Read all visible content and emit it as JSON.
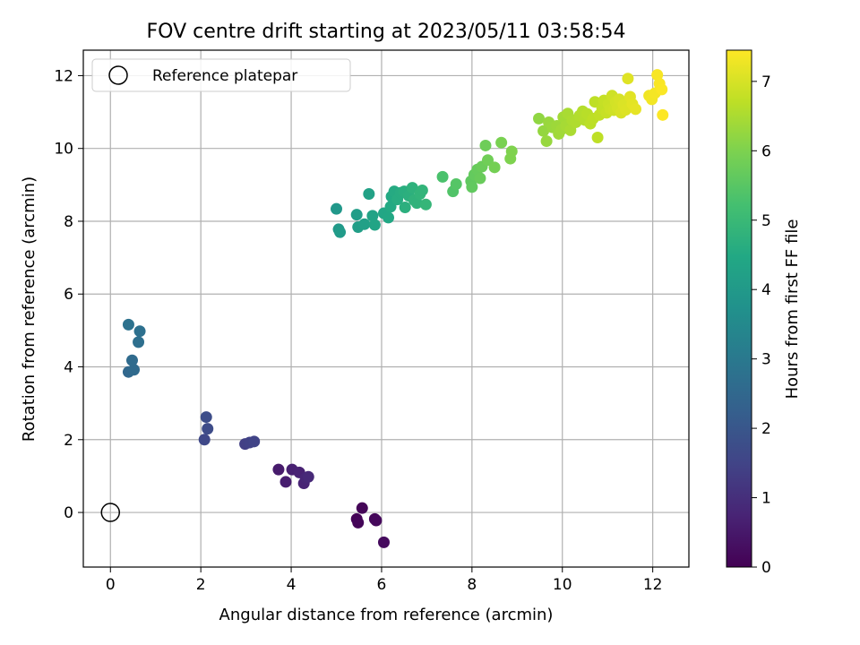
{
  "chart_data": {
    "type": "scatter",
    "title": "FOV centre drift starting at 2023/05/11 03:58:54",
    "xlabel": "Angular distance from reference (arcmin)",
    "ylabel": "Rotation from reference (arcmin)",
    "xlim": [
      -0.6,
      12.8
    ],
    "ylim": [
      -1.5,
      12.7
    ],
    "xticks": [
      0,
      2,
      4,
      6,
      8,
      10,
      12
    ],
    "yticks": [
      0,
      2,
      4,
      6,
      8,
      10,
      12
    ],
    "grid": true,
    "legend": {
      "position": "top-left",
      "entries": [
        "Reference platepar"
      ]
    },
    "reference_point": {
      "x": 0,
      "y": 0
    },
    "colorbar": {
      "label": "Hours from first FF file",
      "min": 0,
      "max": 7.45,
      "ticks": [
        0,
        1,
        2,
        3,
        4,
        5,
        6,
        7
      ],
      "colormap": "viridis"
    },
    "points": [
      {
        "x": 5.45,
        "y": -0.18,
        "c": 0.05
      },
      {
        "x": 5.48,
        "y": -0.28,
        "c": 0.08
      },
      {
        "x": 5.57,
        "y": 0.12,
        "c": 0.1
      },
      {
        "x": 5.85,
        "y": -0.18,
        "c": 0.12
      },
      {
        "x": 5.88,
        "y": -0.22,
        "c": 0.15
      },
      {
        "x": 6.05,
        "y": -0.82,
        "c": 0.2
      },
      {
        "x": 3.72,
        "y": 1.18,
        "c": 0.55
      },
      {
        "x": 3.88,
        "y": 0.84,
        "c": 0.6
      },
      {
        "x": 4.02,
        "y": 1.18,
        "c": 0.65
      },
      {
        "x": 4.18,
        "y": 1.1,
        "c": 0.7
      },
      {
        "x": 4.28,
        "y": 0.8,
        "c": 0.75
      },
      {
        "x": 4.32,
        "y": 0.95,
        "c": 0.8
      },
      {
        "x": 4.38,
        "y": 0.98,
        "c": 0.85
      },
      {
        "x": 2.98,
        "y": 1.88,
        "c": 1.4
      },
      {
        "x": 3.08,
        "y": 1.92,
        "c": 1.45
      },
      {
        "x": 3.18,
        "y": 1.95,
        "c": 1.5
      },
      {
        "x": 2.08,
        "y": 2.0,
        "c": 1.6
      },
      {
        "x": 2.15,
        "y": 2.3,
        "c": 1.7
      },
      {
        "x": 2.12,
        "y": 2.62,
        "c": 1.75
      },
      {
        "x": 0.4,
        "y": 3.86,
        "c": 2.5
      },
      {
        "x": 0.52,
        "y": 3.92,
        "c": 2.55
      },
      {
        "x": 0.48,
        "y": 4.18,
        "c": 2.6
      },
      {
        "x": 0.62,
        "y": 4.68,
        "c": 2.7
      },
      {
        "x": 0.65,
        "y": 4.98,
        "c": 2.75
      },
      {
        "x": 0.4,
        "y": 5.16,
        "c": 2.8
      },
      {
        "x": 5.0,
        "y": 8.34,
        "c": 3.95
      },
      {
        "x": 5.05,
        "y": 7.78,
        "c": 4.0
      },
      {
        "x": 5.08,
        "y": 7.7,
        "c": 4.05
      },
      {
        "x": 5.45,
        "y": 8.18,
        "c": 4.1
      },
      {
        "x": 5.48,
        "y": 7.84,
        "c": 4.15
      },
      {
        "x": 5.62,
        "y": 7.92,
        "c": 4.2
      },
      {
        "x": 5.72,
        "y": 8.75,
        "c": 4.25
      },
      {
        "x": 5.8,
        "y": 8.15,
        "c": 4.3
      },
      {
        "x": 5.85,
        "y": 7.9,
        "c": 4.35
      },
      {
        "x": 6.05,
        "y": 8.22,
        "c": 4.4
      },
      {
        "x": 6.15,
        "y": 8.1,
        "c": 4.45
      },
      {
        "x": 6.2,
        "y": 8.4,
        "c": 4.5
      },
      {
        "x": 6.22,
        "y": 8.68,
        "c": 4.5
      },
      {
        "x": 6.28,
        "y": 8.82,
        "c": 4.55
      },
      {
        "x": 6.35,
        "y": 8.6,
        "c": 4.6
      },
      {
        "x": 6.42,
        "y": 8.78,
        "c": 4.6
      },
      {
        "x": 6.5,
        "y": 8.82,
        "c": 4.65
      },
      {
        "x": 6.52,
        "y": 8.38,
        "c": 4.7
      },
      {
        "x": 6.6,
        "y": 8.7,
        "c": 4.7
      },
      {
        "x": 6.68,
        "y": 8.92,
        "c": 4.75
      },
      {
        "x": 6.72,
        "y": 8.58,
        "c": 4.8
      },
      {
        "x": 6.78,
        "y": 8.5,
        "c": 4.8
      },
      {
        "x": 6.85,
        "y": 8.75,
        "c": 4.85
      },
      {
        "x": 6.9,
        "y": 8.85,
        "c": 4.85
      },
      {
        "x": 6.98,
        "y": 8.46,
        "c": 4.9
      },
      {
        "x": 7.35,
        "y": 9.22,
        "c": 5.3
      },
      {
        "x": 7.58,
        "y": 8.82,
        "c": 5.4
      },
      {
        "x": 7.65,
        "y": 9.02,
        "c": 5.45
      },
      {
        "x": 7.98,
        "y": 9.1,
        "c": 5.6
      },
      {
        "x": 8.0,
        "y": 8.94,
        "c": 5.62
      },
      {
        "x": 8.05,
        "y": 9.28,
        "c": 5.65
      },
      {
        "x": 8.12,
        "y": 9.42,
        "c": 5.7
      },
      {
        "x": 8.18,
        "y": 9.18,
        "c": 5.72
      },
      {
        "x": 8.22,
        "y": 9.5,
        "c": 5.75
      },
      {
        "x": 8.3,
        "y": 10.08,
        "c": 5.8
      },
      {
        "x": 8.35,
        "y": 9.68,
        "c": 5.82
      },
      {
        "x": 8.5,
        "y": 9.48,
        "c": 5.88
      },
      {
        "x": 8.65,
        "y": 10.16,
        "c": 5.95
      },
      {
        "x": 8.85,
        "y": 9.72,
        "c": 6.0
      },
      {
        "x": 8.88,
        "y": 9.92,
        "c": 6.02
      },
      {
        "x": 9.48,
        "y": 10.82,
        "c": 6.2
      },
      {
        "x": 9.58,
        "y": 10.48,
        "c": 6.25
      },
      {
        "x": 9.65,
        "y": 10.2,
        "c": 6.28
      },
      {
        "x": 9.7,
        "y": 10.72,
        "c": 6.3
      },
      {
        "x": 9.78,
        "y": 10.58,
        "c": 6.32
      },
      {
        "x": 9.88,
        "y": 10.62,
        "c": 6.35
      },
      {
        "x": 9.92,
        "y": 10.4,
        "c": 6.38
      },
      {
        "x": 9.98,
        "y": 10.52,
        "c": 6.4
      },
      {
        "x": 10.02,
        "y": 10.86,
        "c": 6.42
      },
      {
        "x": 10.08,
        "y": 10.62,
        "c": 6.45
      },
      {
        "x": 10.12,
        "y": 10.96,
        "c": 6.48
      },
      {
        "x": 10.18,
        "y": 10.5,
        "c": 6.5
      },
      {
        "x": 10.22,
        "y": 10.78,
        "c": 6.52
      },
      {
        "x": 10.3,
        "y": 10.72,
        "c": 6.55
      },
      {
        "x": 10.38,
        "y": 10.9,
        "c": 6.58
      },
      {
        "x": 10.45,
        "y": 11.02,
        "c": 6.6
      },
      {
        "x": 10.5,
        "y": 10.78,
        "c": 6.62
      },
      {
        "x": 10.55,
        "y": 10.95,
        "c": 6.65
      },
      {
        "x": 10.62,
        "y": 10.68,
        "c": 6.68
      },
      {
        "x": 10.68,
        "y": 10.82,
        "c": 6.7
      },
      {
        "x": 10.72,
        "y": 11.28,
        "c": 6.72
      },
      {
        "x": 10.78,
        "y": 10.3,
        "c": 6.72
      },
      {
        "x": 10.82,
        "y": 10.92,
        "c": 6.75
      },
      {
        "x": 10.88,
        "y": 11.1,
        "c": 6.78
      },
      {
        "x": 10.92,
        "y": 11.32,
        "c": 6.8
      },
      {
        "x": 10.98,
        "y": 10.98,
        "c": 6.82
      },
      {
        "x": 11.02,
        "y": 11.22,
        "c": 6.85
      },
      {
        "x": 11.06,
        "y": 11.08,
        "c": 6.88
      },
      {
        "x": 11.1,
        "y": 11.45,
        "c": 6.9
      },
      {
        "x": 11.14,
        "y": 11.05,
        "c": 6.92
      },
      {
        "x": 11.18,
        "y": 11.28,
        "c": 6.95
      },
      {
        "x": 11.22,
        "y": 11.12,
        "c": 6.97
      },
      {
        "x": 11.26,
        "y": 11.35,
        "c": 7.0
      },
      {
        "x": 11.3,
        "y": 10.98,
        "c": 7.02
      },
      {
        "x": 11.35,
        "y": 11.2,
        "c": 7.05
      },
      {
        "x": 11.4,
        "y": 11.06,
        "c": 7.08
      },
      {
        "x": 11.45,
        "y": 11.92,
        "c": 7.1
      },
      {
        "x": 11.5,
        "y": 11.42,
        "c": 7.12
      },
      {
        "x": 11.55,
        "y": 11.22,
        "c": 7.15
      },
      {
        "x": 11.62,
        "y": 11.08,
        "c": 7.18
      },
      {
        "x": 11.92,
        "y": 11.45,
        "c": 7.3
      },
      {
        "x": 11.98,
        "y": 11.35,
        "c": 7.32
      },
      {
        "x": 12.05,
        "y": 11.52,
        "c": 7.35
      },
      {
        "x": 12.1,
        "y": 12.02,
        "c": 7.38
      },
      {
        "x": 12.15,
        "y": 11.78,
        "c": 7.4
      },
      {
        "x": 12.2,
        "y": 11.62,
        "c": 7.42
      },
      {
        "x": 12.22,
        "y": 10.92,
        "c": 7.44
      }
    ]
  }
}
